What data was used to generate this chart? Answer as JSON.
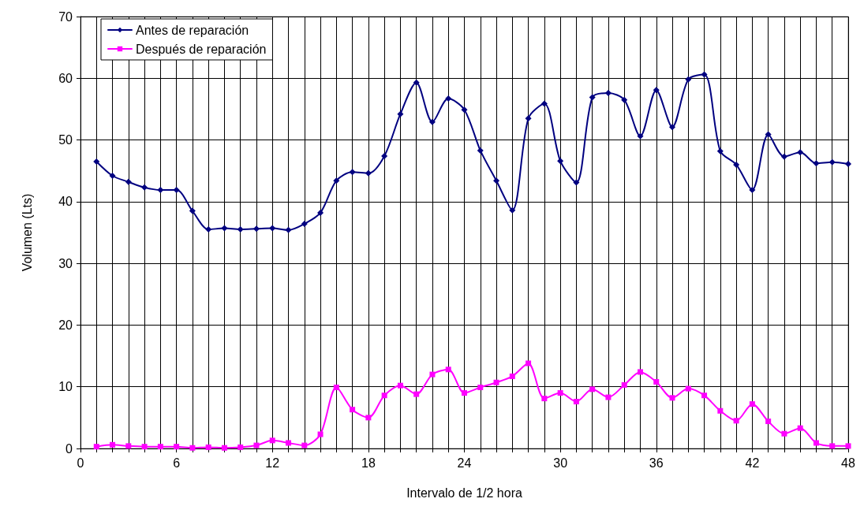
{
  "chart_data": {
    "type": "line",
    "xlabel": "Intervalo de 1/2 hora",
    "ylabel": "Volumen (Lts)",
    "x": [
      1,
      2,
      3,
      4,
      5,
      6,
      7,
      8,
      9,
      10,
      11,
      12,
      13,
      14,
      15,
      16,
      17,
      18,
      19,
      20,
      21,
      22,
      23,
      24,
      25,
      26,
      27,
      28,
      29,
      30,
      31,
      32,
      33,
      34,
      35,
      36,
      37,
      38,
      39,
      40,
      41,
      42,
      43,
      44,
      45,
      46,
      47,
      48
    ],
    "series": [
      {
        "name": "Antes de reparación",
        "color": "#000080",
        "marker": "diamond",
        "values": [
          46.5,
          44.2,
          43.2,
          42.3,
          41.9,
          41.9,
          38.5,
          35.5,
          35.7,
          35.5,
          35.6,
          35.7,
          35.4,
          36.4,
          38.2,
          43.4,
          44.8,
          44.6,
          47.4,
          54.2,
          59.3,
          52.9,
          56.7,
          54.9,
          48.3,
          43.4,
          38.6,
          53.5,
          55.9,
          46.6,
          43.1,
          56.9,
          57.6,
          56.5,
          50.6,
          58.1,
          52.1,
          59.8,
          60.6,
          48.2,
          46,
          41.9,
          50.9,
          47.3,
          48,
          46.2,
          46.4,
          46.1
        ]
      },
      {
        "name": "Después de reparación",
        "color": "#ff00ff",
        "marker": "square",
        "values": [
          0.3,
          0.6,
          0.4,
          0.3,
          0.3,
          0.3,
          0.1,
          0.2,
          0.1,
          0.2,
          0.5,
          1.3,
          0.9,
          0.5,
          2.3,
          9.9,
          6.3,
          5.0,
          8.6,
          10.2,
          8.8,
          12.0,
          12.8,
          9.0,
          9.9,
          10.7,
          11.7,
          13.8,
          8.1,
          9.0,
          7.6,
          9.6,
          8.3,
          10.3,
          12.4,
          10.8,
          8.2,
          9.7,
          8.6,
          6.1,
          4.5,
          7.2,
          4.4,
          2.4,
          3.3,
          0.9,
          0.4,
          0.4
        ]
      }
    ],
    "xlim": [
      0,
      48
    ],
    "xticks": [
      0,
      {
        "value": 1,
        "label": null
      },
      {
        "value": 2,
        "label": null
      },
      {
        "value": 3,
        "label": null
      },
      {
        "value": 4,
        "label": null
      },
      {
        "value": 5,
        "label": null
      },
      6,
      {
        "value": 7,
        "label": null
      },
      {
        "value": 8,
        "label": null
      },
      {
        "value": 9,
        "label": null
      },
      {
        "value": 10,
        "label": null
      },
      {
        "value": 11,
        "label": null
      },
      12,
      {
        "value": 13,
        "label": null
      },
      {
        "value": 14,
        "label": null
      },
      {
        "value": 15,
        "label": null
      },
      {
        "value": 16,
        "label": null
      },
      {
        "value": 17,
        "label": null
      },
      18,
      {
        "value": 19,
        "label": null
      },
      {
        "value": 20,
        "label": null
      },
      {
        "value": 21,
        "label": null
      },
      {
        "value": 22,
        "label": null
      },
      {
        "value": 23,
        "label": null
      },
      24,
      {
        "value": 25,
        "label": null
      },
      {
        "value": 26,
        "label": null
      },
      {
        "value": 27,
        "label": null
      },
      {
        "value": 28,
        "label": null
      },
      {
        "value": 29,
        "label": null
      },
      30,
      {
        "value": 31,
        "label": null
      },
      {
        "value": 32,
        "label": null
      },
      {
        "value": 33,
        "label": null
      },
      {
        "value": 34,
        "label": null
      },
      {
        "value": 35,
        "label": null
      },
      36,
      {
        "value": 37,
        "label": null
      },
      {
        "value": 38,
        "label": null
      },
      {
        "value": 39,
        "label": null
      },
      {
        "value": 40,
        "label": null
      },
      {
        "value": 41,
        "label": null
      },
      42,
      {
        "value": 43,
        "label": null
      },
      {
        "value": 44,
        "label": null
      },
      {
        "value": 45,
        "label": null
      },
      {
        "value": 46,
        "label": null
      },
      {
        "value": 47,
        "label": null
      },
      48
    ],
    "ylim": [
      0,
      70
    ],
    "yticks": [
      0,
      10,
      20,
      30,
      40,
      50,
      60,
      70
    ],
    "grid": true,
    "legend": "top left",
    "line_style": "solid"
  }
}
